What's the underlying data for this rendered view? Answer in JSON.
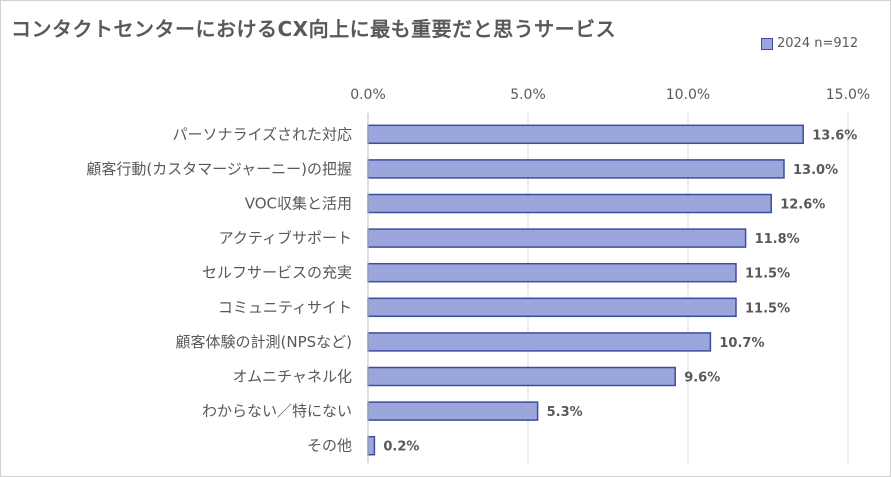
{
  "chart_data": {
    "type": "bar",
    "orientation": "horizontal",
    "title": "コンタクトセンターにおけるCX向上に最も重要だと思うサービス",
    "categories": [
      "パーソナライズされた対応",
      "顧客行動(カスタマージャーニー)の把握",
      "VOC収集と活用",
      "アクティブサポート",
      "セルフサービスの充実",
      "コミュニティサイト",
      "顧客体験の計測(NPSなど)",
      "オムニチャネル化",
      "わからない／特にない",
      "その他"
    ],
    "series": [
      {
        "name": "2024 n=912",
        "values": [
          13.6,
          13.0,
          12.6,
          11.8,
          11.5,
          11.5,
          10.7,
          9.6,
          5.3,
          0.2
        ],
        "labels": [
          "13.6%",
          "13.0%",
          "12.6%",
          "11.8%",
          "11.5%",
          "11.5%",
          "10.7%",
          "9.6%",
          "5.3%",
          "0.2%"
        ]
      }
    ],
    "xlim": [
      0,
      15
    ],
    "x_ticks": [
      "0.0%",
      "5.0%",
      "10.0%",
      "15.0%"
    ],
    "x_tick_values": [
      0,
      5,
      10,
      15
    ],
    "x_axis_position": "top",
    "grid": true,
    "legend_position": "top-right",
    "bar_color": "#9aa6dc",
    "bar_edge_color": "#3f4d9e"
  }
}
